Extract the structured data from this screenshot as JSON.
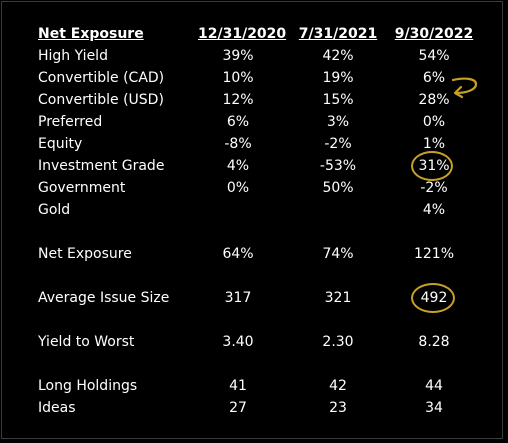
{
  "header": {
    "label": "Net Exposure",
    "col1": "12/31/2020",
    "col2": "7/31/2021",
    "col3": "9/30/2022"
  },
  "rows": [
    {
      "label": "High Yield",
      "v1": "39%",
      "v2": "42%",
      "v3": "54%"
    },
    {
      "label": "Convertible (CAD)",
      "v1": "10%",
      "v2": "19%",
      "v3": "6%"
    },
    {
      "label": "Convertible (USD)",
      "v1": "12%",
      "v2": "15%",
      "v3": "28%"
    },
    {
      "label": "Preferred",
      "v1": "6%",
      "v2": "3%",
      "v3": "0%"
    },
    {
      "label": "Equity",
      "v1": "-8%",
      "v2": "-2%",
      "v3": "1%"
    },
    {
      "label": "Investment Grade",
      "v1": "4%",
      "v2": "-53%",
      "v3": "31%"
    },
    {
      "label": "Government",
      "v1": "0%",
      "v2": "50%",
      "v3": "-2%"
    },
    {
      "label": "Gold",
      "v1": "",
      "v2": "",
      "v3": "4%"
    },
    {
      "label": "Net Exposure",
      "v1": "64%",
      "v2": "74%",
      "v3": "121%"
    },
    {
      "label": "Average Issue Size",
      "v1": "317",
      "v2": "321",
      "v3": "492"
    },
    {
      "label": "Yield to Worst",
      "v1": "3.40",
      "v2": "2.30",
      "v3": "8.28"
    },
    {
      "label": "Long Holdings",
      "v1": "41",
      "v2": "42",
      "v3": "44"
    },
    {
      "label": "Ideas",
      "v1": "27",
      "v2": "23",
      "v3": "34"
    }
  ],
  "annotations": {
    "color": "#c8a028",
    "arrow_icon": "curved-arrow-icon",
    "circled_values": [
      "31%",
      "492"
    ]
  }
}
